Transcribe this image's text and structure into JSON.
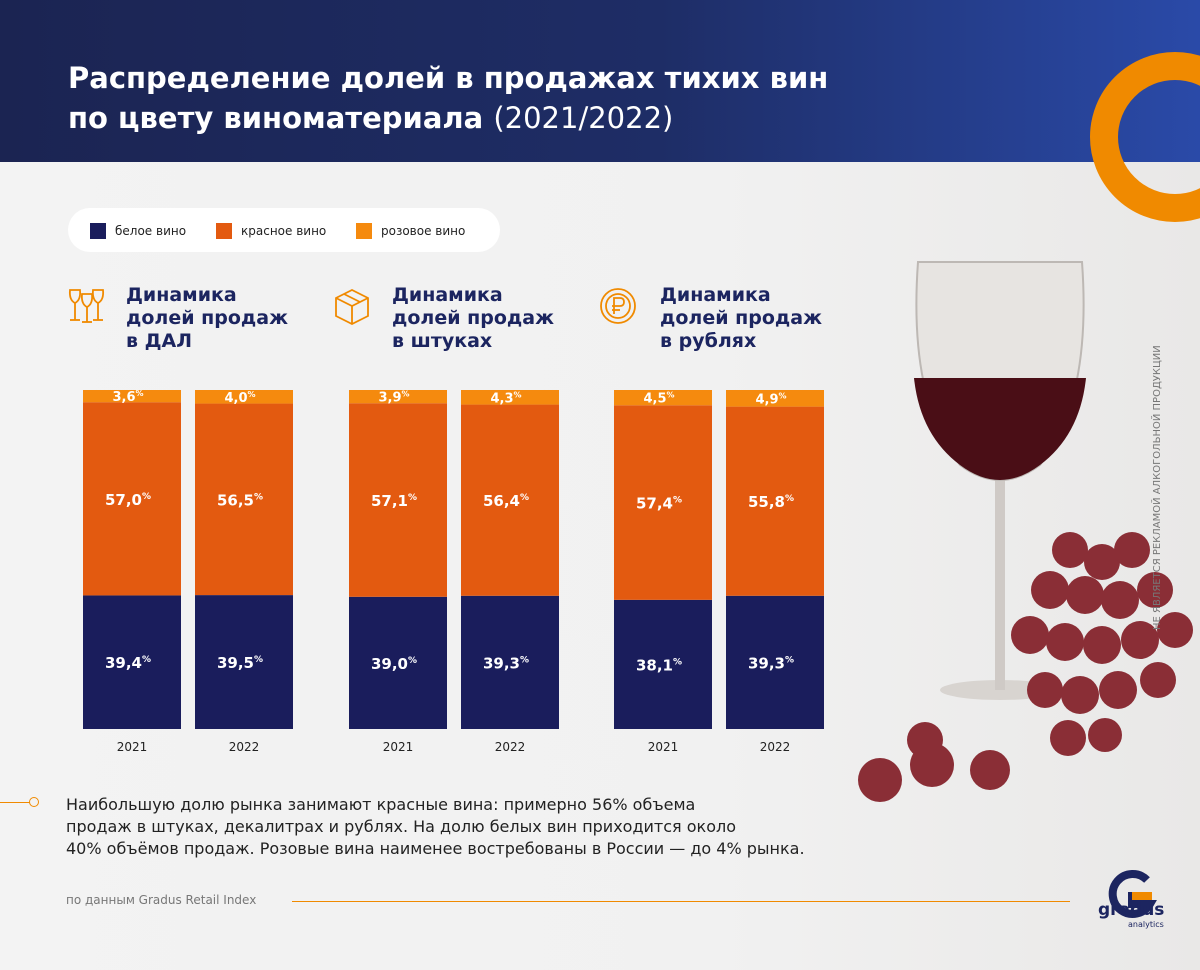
{
  "title": {
    "line1": "Распределение долей в продажах тихих вин",
    "line2": "по цвету виноматериала",
    "years": "(2021/2022)"
  },
  "legend": [
    {
      "label": "белое вино",
      "color": "#1a1d5c"
    },
    {
      "label": "красное вино",
      "color": "#e35a10"
    },
    {
      "label": "розовое вино",
      "color": "#f58a0e"
    }
  ],
  "groups": [
    {
      "title_lines": [
        "Динамика",
        "долей продаж",
        "в ДАЛ"
      ],
      "icon": "wine-glasses-icon"
    },
    {
      "title_lines": [
        "Динамика",
        "долей продаж",
        "в штуках"
      ],
      "icon": "box-icon"
    },
    {
      "title_lines": [
        "Динамика",
        "долей продаж",
        "в рублях"
      ],
      "icon": "ruble-coin-icon"
    }
  ],
  "chart_data": {
    "type": "bar",
    "stacked": true,
    "categories": [
      "2021",
      "2022"
    ],
    "panels": [
      {
        "series": [
          {
            "name": "белое вино",
            "values": [
              39.4,
              39.5
            ],
            "labels": [
              "39,4",
              "39,5"
            ]
          },
          {
            "name": "красное вино",
            "values": [
              57.0,
              56.5
            ],
            "labels": [
              "57,0",
              "56,5"
            ]
          },
          {
            "name": "розовое вино",
            "values": [
              3.6,
              4.0
            ],
            "labels": [
              "3,6",
              "4,0"
            ]
          }
        ]
      },
      {
        "series": [
          {
            "name": "белое вино",
            "values": [
              39.0,
              39.3
            ],
            "labels": [
              "39,0",
              "39,3"
            ]
          },
          {
            "name": "красное вино",
            "values": [
              57.1,
              56.4
            ],
            "labels": [
              "57,1",
              "56,4"
            ]
          },
          {
            "name": "розовое вино",
            "values": [
              3.9,
              4.3
            ],
            "labels": [
              "3,9",
              "4,3"
            ]
          }
        ]
      },
      {
        "series": [
          {
            "name": "белое вино",
            "values": [
              38.1,
              39.3
            ],
            "labels": [
              "38,1",
              "39,3"
            ]
          },
          {
            "name": "красное вино",
            "values": [
              57.4,
              55.8
            ],
            "labels": [
              "57,4",
              "55,8"
            ]
          },
          {
            "name": "розовое вино",
            "values": [
              4.5,
              4.9
            ],
            "labels": [
              "4,5",
              "4,9"
            ]
          }
        ]
      }
    ],
    "unit": "%",
    "ylim": [
      0,
      100
    ]
  },
  "caption": {
    "line1": "Наибольшую долю рынка занимают красные вина: примерно 56% объема",
    "line2": "продаж в штуках, декалитрах и рублях. На долю белых вин приходится около",
    "line3": "40% объёмов продаж. Розовые вина наименее востребованы в России — до 4% рынка."
  },
  "source": "по данным Gradus Retail Index",
  "disclaimer": "НЕ ЯВЛЯЕТСЯ РЕКЛАМОЙ АЛКОГОЛЬНОЙ ПРОДУКЦИИ",
  "logo": {
    "word": "gradus",
    "sub": "analytics"
  }
}
